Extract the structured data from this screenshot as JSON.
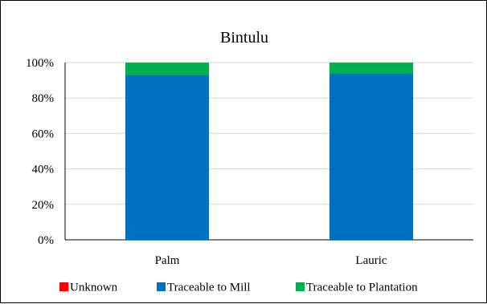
{
  "chart_data": {
    "type": "bar",
    "stacked": true,
    "percent": true,
    "title": "Bintulu",
    "categories": [
      "Palm",
      "Lauric"
    ],
    "series": [
      {
        "name": "Unknown",
        "color": "#ff0000",
        "values": [
          0,
          0
        ]
      },
      {
        "name": "Traceable to Mill",
        "color": "#0070c0",
        "values": [
          93,
          94
        ]
      },
      {
        "name": "Traceable to Plantation",
        "color": "#00b050",
        "values": [
          7,
          6
        ]
      }
    ],
    "ylim": [
      0,
      100
    ],
    "yticks": [
      "0%",
      "20%",
      "40%",
      "60%",
      "80%",
      "100%"
    ],
    "grid": true,
    "legend": "bottom"
  }
}
